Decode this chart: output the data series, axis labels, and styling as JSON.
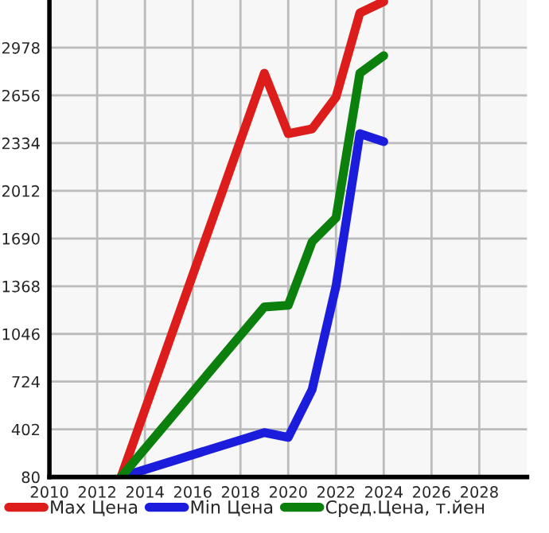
{
  "chart_data": {
    "type": "line",
    "x": [
      2013,
      2019,
      2020,
      2021,
      2022,
      2023,
      2024
    ],
    "series": [
      {
        "name": "Max Цена",
        "color": "#dd1c1c",
        "values": [
          80,
          2806,
          2398,
          2430,
          2645,
          3213,
          3290
        ]
      },
      {
        "name": "Min Цена",
        "color": "#1c1cdd",
        "values": [
          80,
          380,
          348,
          670,
          1368,
          2398,
          2344
        ]
      },
      {
        "name": "Сред.Цена, т.йен",
        "color": "#0c800c",
        "values": [
          80,
          1228,
          1239,
          1668,
          1829,
          2806,
          2924
        ]
      }
    ],
    "xlim": [
      2010,
      2030
    ],
    "xticks": [
      2010,
      2012,
      2014,
      2016,
      2018,
      2020,
      2022,
      2024,
      2026,
      2028
    ],
    "ylim": [
      80,
      3300
    ],
    "yticks": [
      80,
      402,
      724,
      1046,
      1368,
      1690,
      2012,
      2334,
      2656,
      2978
    ],
    "grid": true,
    "legend": "bottom",
    "marker": "none",
    "line_style": "solid"
  }
}
